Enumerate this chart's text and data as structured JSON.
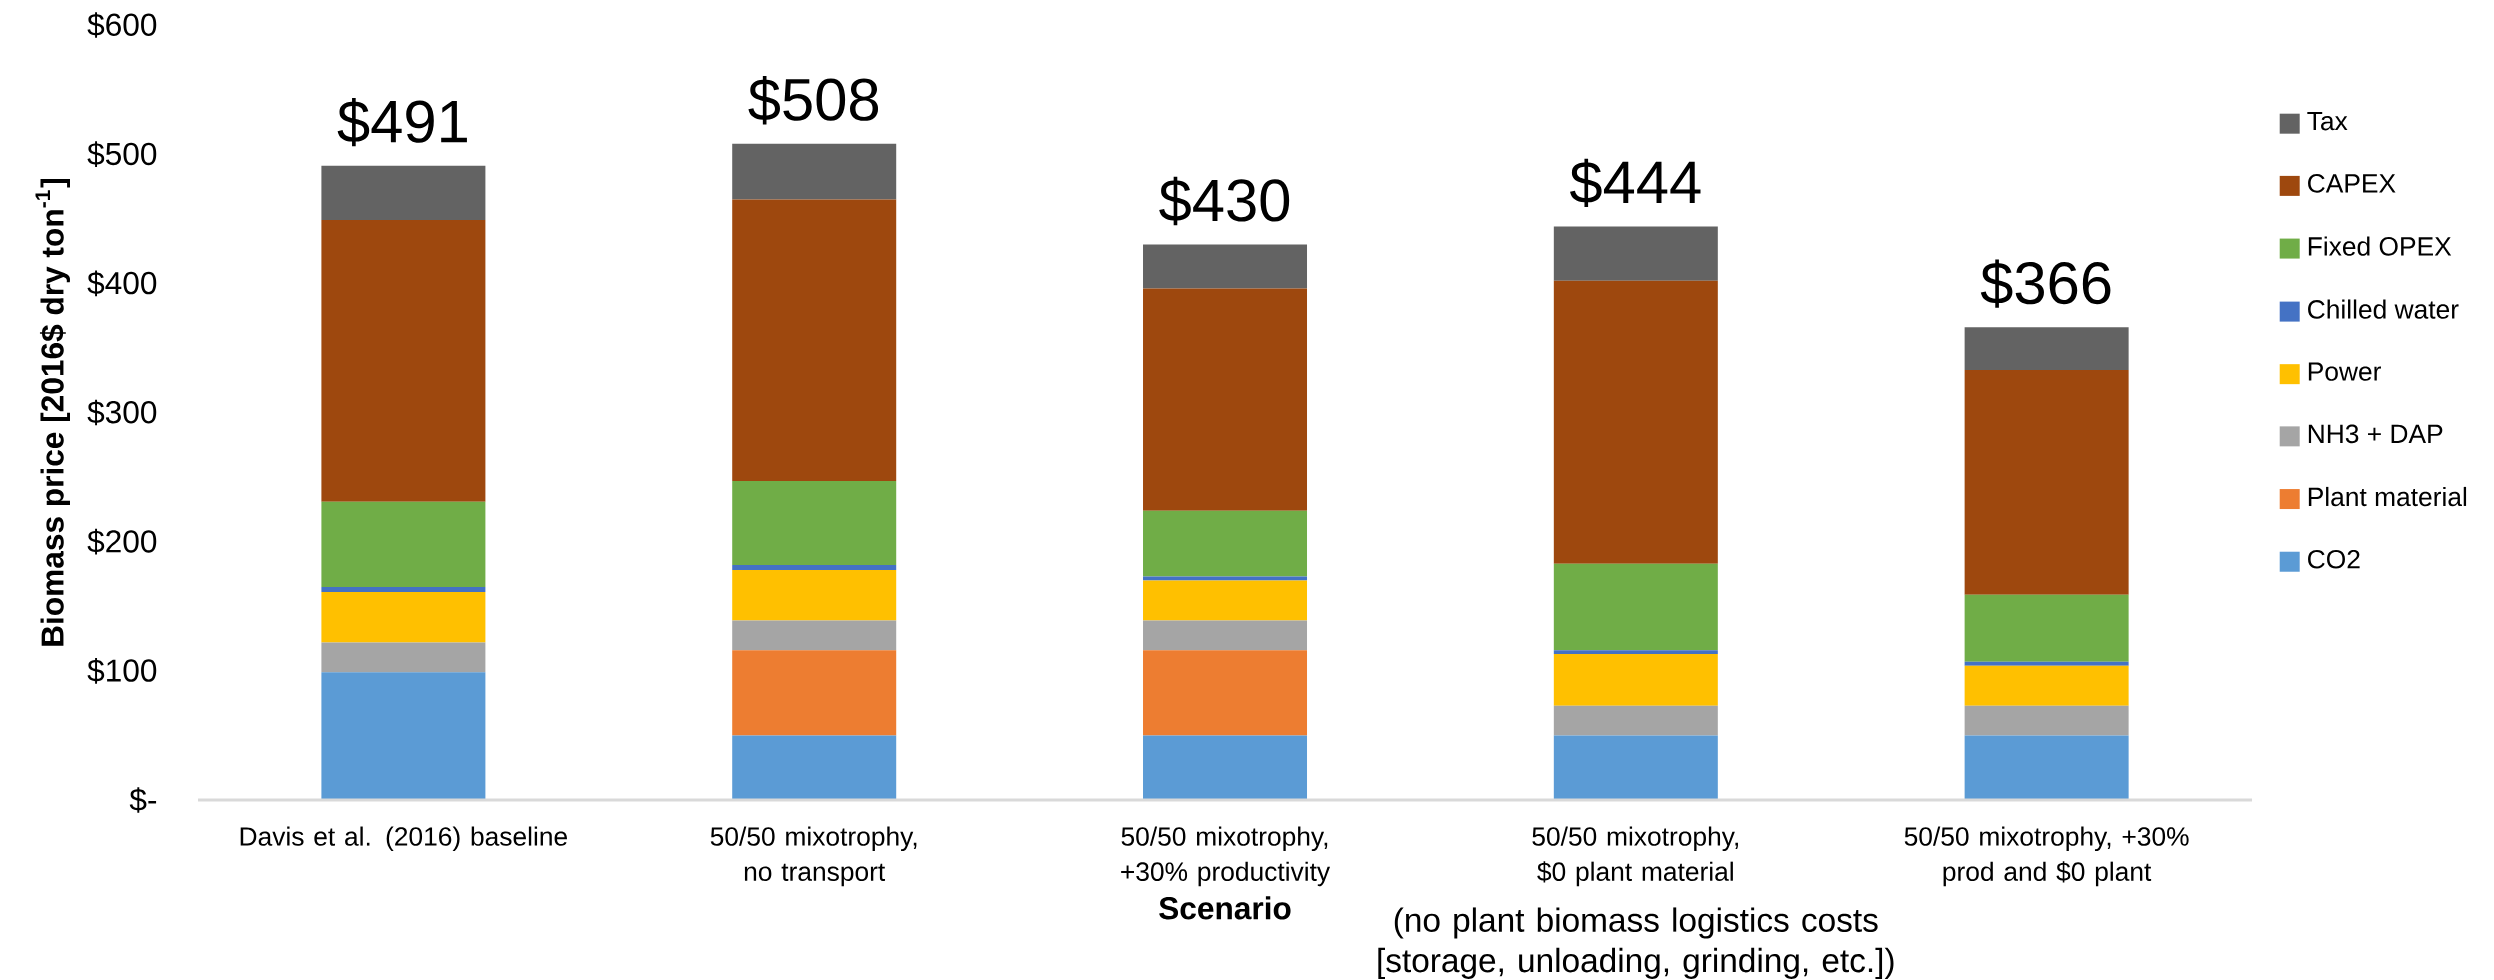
{
  "chart_data": {
    "type": "bar",
    "stacked": true,
    "xlabel": "Scenario",
    "ylabel": "Biomass price [2016$ dry ton$^{-1}$]",
    "categories": [
      "Davis et al. (2016) baseline",
      "50/50 mixotrophy, no transport",
      "50/50 mixotrophy, +30% productivity",
      "50/50 mixotrophy, $0 plant material",
      "50/50 mixotrophy, +30% prod and $0 plant"
    ],
    "series": [
      {
        "name": "CO2",
        "color": "#5b9bd5",
        "values": [
          99,
          50,
          50,
          50,
          50
        ]
      },
      {
        "name": "Plant material",
        "color": "#ed7d31",
        "values": [
          0,
          66,
          66,
          0,
          0
        ]
      },
      {
        "name": "NH3 + DAP",
        "color": "#a5a5a5",
        "values": [
          23,
          23,
          23,
          23,
          23
        ]
      },
      {
        "name": "Power",
        "color": "#ffc000",
        "values": [
          39,
          39,
          31,
          40,
          31
        ]
      },
      {
        "name": "Chilled water",
        "color": "#4472c4",
        "values": [
          4,
          4,
          3,
          3,
          3
        ]
      },
      {
        "name": "Fixed OPEX",
        "color": "#70ad47",
        "values": [
          66,
          65,
          51,
          67,
          52
        ]
      },
      {
        "name": "CAPEX",
        "color": "#9e480e",
        "values": [
          218,
          218,
          172,
          219,
          174
        ]
      },
      {
        "name": "Tax",
        "color": "#636363",
        "values": [
          42,
          43,
          34,
          42,
          33
        ]
      }
    ],
    "totals": [
      "$491",
      "$508",
      "$430",
      "$444",
      "$366"
    ],
    "ylim": [
      0,
      600
    ],
    "yticks": [
      {
        "value": 0,
        "label": "$-"
      },
      {
        "value": 100,
        "label": "$100"
      },
      {
        "value": 200,
        "label": "$200"
      },
      {
        "value": 300,
        "label": "$300"
      },
      {
        "value": 400,
        "label": "$400"
      },
      {
        "value": 500,
        "label": "$500"
      },
      {
        "value": 600,
        "label": "$600"
      }
    ],
    "annotations": [
      "(no plant biomass logistics costs [storage, unloading, grinding, etc.])"
    ],
    "grid": false,
    "legend": "right"
  }
}
